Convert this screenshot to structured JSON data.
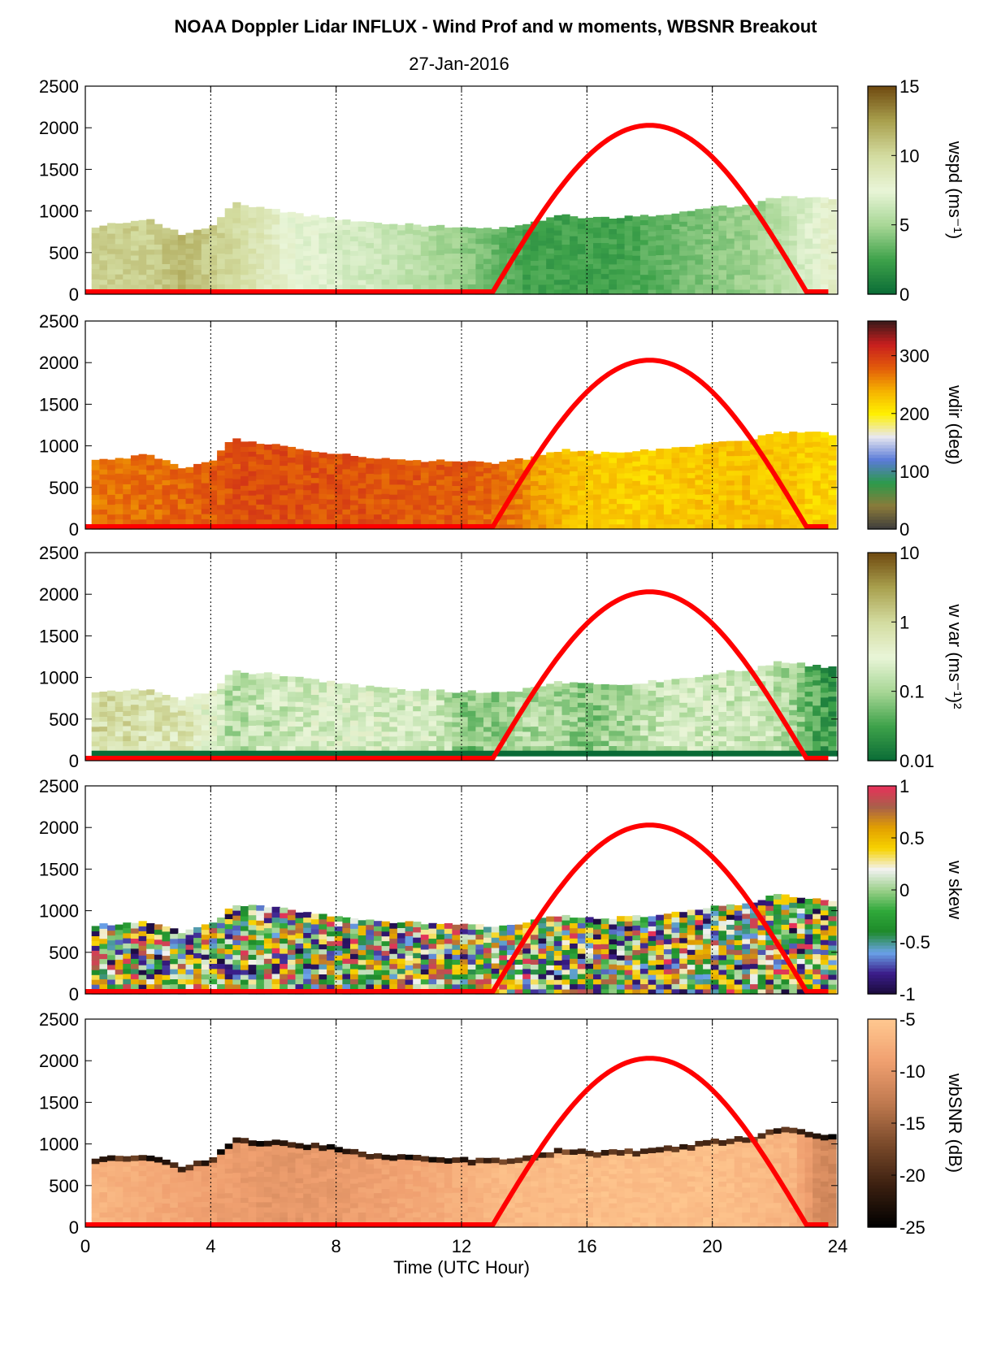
{
  "figure": {
    "title": "NOAA Doppler Lidar INFLUX - Wind Prof and w moments, WBSNR Breakout",
    "subtitle": "27-Jan-2016",
    "xlabel": "Time (UTC Hour)"
  },
  "colors": {
    "sun_curve": "#ff0000",
    "ground_line": "#ff0000"
  },
  "chart_data": [
    {
      "type": "heatmap",
      "variable": "wspd",
      "colorbar_label": "wspd (ms⁻¹)",
      "colorbar_ticks": [
        "0",
        "5",
        "10",
        "15"
      ],
      "clim": [
        0,
        15
      ],
      "colormap": [
        "#0a6b36",
        "#3ea24a",
        "#a8d796",
        "#e9f5d8",
        "#d3dca0",
        "#a9a04e",
        "#6f4a10"
      ],
      "x_ticks": [
        0,
        4,
        8,
        12,
        16,
        20,
        24
      ],
      "xlim": [
        0,
        24
      ],
      "y_ticks": [
        0,
        500,
        1000,
        1500,
        2000,
        2500
      ],
      "ylim": [
        0,
        2500
      ],
      "sun_curve": {
        "start_hour": 13,
        "peak_hour": 18,
        "end_hour": 23,
        "peak_value": 2000
      },
      "top_height_m": [
        [
          0.2,
          820
        ],
        [
          1.0,
          850
        ],
        [
          2.0,
          900
        ],
        [
          3.0,
          710
        ],
        [
          4.0,
          850
        ],
        [
          4.6,
          1120
        ],
        [
          5.0,
          1050
        ],
        [
          6.0,
          1010
        ],
        [
          7.0,
          950
        ],
        [
          8.0,
          900
        ],
        [
          9.0,
          860
        ],
        [
          10.0,
          840
        ],
        [
          11.0,
          820
        ],
        [
          12.0,
          800
        ],
        [
          13.0,
          790
        ],
        [
          14.0,
          850
        ],
        [
          15.0,
          950
        ],
        [
          16.0,
          920
        ],
        [
          17.0,
          920
        ],
        [
          18.0,
          950
        ],
        [
          19.0,
          980
        ],
        [
          20.0,
          1060
        ],
        [
          21.0,
          1060
        ],
        [
          22.0,
          1170
        ],
        [
          23.0,
          1170
        ],
        [
          23.8,
          1130
        ]
      ],
      "level_by_hour": [
        [
          0.2,
          10.5
        ],
        [
          2.0,
          10.5
        ],
        [
          3.0,
          11.5
        ],
        [
          5.5,
          9.0
        ],
        [
          6.5,
          7.5
        ],
        [
          10.0,
          6.0
        ],
        [
          12.0,
          4.5
        ],
        [
          14.0,
          2.5
        ],
        [
          17.0,
          2.5
        ],
        [
          19.5,
          4.0
        ],
        [
          21.5,
          5.0
        ],
        [
          23.0,
          7.0
        ],
        [
          23.8,
          8.5
        ]
      ]
    },
    {
      "type": "heatmap",
      "variable": "wdir",
      "colorbar_label": "wdir (deg)",
      "colorbar_ticks": [
        "0",
        "100",
        "200",
        "300"
      ],
      "clim": [
        0,
        360
      ],
      "colormap": [
        "#3c3c3c",
        "#8b7a3a",
        "#2c9a4a",
        "#5a7ad8",
        "#e8e8f0",
        "#fff000",
        "#f5b000",
        "#e25a0a",
        "#c81e1e",
        "#3a1a1a"
      ],
      "x_ticks": [
        0,
        4,
        8,
        12,
        16,
        20,
        24
      ],
      "xlim": [
        0,
        24
      ],
      "y_ticks": [
        0,
        500,
        1000,
        1500,
        2000,
        2500
      ],
      "ylim": [
        0,
        2500
      ],
      "sun_curve": {
        "start_hour": 13,
        "peak_hour": 18,
        "end_hour": 23,
        "peak_value": 2000
      },
      "top_height_m": [
        [
          0.2,
          820
        ],
        [
          1.0,
          850
        ],
        [
          2.0,
          900
        ],
        [
          3.0,
          710
        ],
        [
          4.0,
          850
        ],
        [
          4.6,
          1120
        ],
        [
          5.0,
          1050
        ],
        [
          6.0,
          1010
        ],
        [
          7.0,
          950
        ],
        [
          8.0,
          900
        ],
        [
          9.0,
          860
        ],
        [
          10.0,
          840
        ],
        [
          11.0,
          820
        ],
        [
          12.0,
          800
        ],
        [
          13.0,
          790
        ],
        [
          14.0,
          850
        ],
        [
          15.0,
          950
        ],
        [
          16.0,
          920
        ],
        [
          17.0,
          920
        ],
        [
          18.0,
          950
        ],
        [
          19.0,
          980
        ],
        [
          20.0,
          1060
        ],
        [
          21.0,
          1060
        ],
        [
          22.0,
          1170
        ],
        [
          23.0,
          1170
        ],
        [
          23.8,
          1130
        ]
      ],
      "level_by_hour": [
        [
          0.2,
          265
        ],
        [
          3.0,
          275
        ],
        [
          5.0,
          290
        ],
        [
          9.0,
          285
        ],
        [
          12.0,
          280
        ],
        [
          13.5,
          265
        ],
        [
          15.0,
          235
        ],
        [
          17.0,
          220
        ],
        [
          19.0,
          225
        ],
        [
          21.0,
          230
        ],
        [
          22.5,
          225
        ],
        [
          23.8,
          215
        ]
      ]
    },
    {
      "type": "heatmap",
      "variable": "w var",
      "colorbar_label": "w var (ms⁻¹)²",
      "colorbar_ticks": [
        "0.01",
        "0.1",
        "1",
        "10"
      ],
      "clim": [
        0.01,
        10
      ],
      "log_scale": true,
      "colormap": [
        "#0a6b36",
        "#3ea24a",
        "#a8d796",
        "#e9f5d8",
        "#d3dca0",
        "#a9a04e",
        "#6f4a10"
      ],
      "x_ticks": [
        0,
        4,
        8,
        12,
        16,
        20,
        24
      ],
      "xlim": [
        0,
        24
      ],
      "y_ticks": [
        0,
        500,
        1000,
        1500,
        2000,
        2500
      ],
      "ylim": [
        0,
        2500
      ],
      "sun_curve": {
        "start_hour": 13,
        "peak_hour": 18,
        "end_hour": 23,
        "peak_value": 2000
      },
      "bottom_band": {
        "height_m": 120,
        "color": "#0a6b36"
      },
      "top_height_m": [
        [
          0.2,
          820
        ],
        [
          1.0,
          850
        ],
        [
          2.0,
          870
        ],
        [
          3.0,
          730
        ],
        [
          4.0,
          860
        ],
        [
          4.6,
          1070
        ],
        [
          6.0,
          1040
        ],
        [
          7.0,
          980
        ],
        [
          8.0,
          930
        ],
        [
          9.0,
          880
        ],
        [
          10.0,
          860
        ],
        [
          11.0,
          840
        ],
        [
          12.0,
          830
        ],
        [
          13.0,
          820
        ],
        [
          14.0,
          860
        ],
        [
          15.0,
          940
        ],
        [
          16.0,
          920
        ],
        [
          17.0,
          920
        ],
        [
          18.0,
          950
        ],
        [
          19.0,
          980
        ],
        [
          20.0,
          1060
        ],
        [
          21.0,
          1080
        ],
        [
          22.0,
          1200
        ],
        [
          23.0,
          1150
        ],
        [
          24.0,
          1110
        ]
      ],
      "level_by_hour": [
        [
          0.2,
          0.9
        ],
        [
          3.0,
          0.6
        ],
        [
          4.5,
          0.12
        ],
        [
          8.0,
          0.25
        ],
        [
          11.0,
          0.2
        ],
        [
          12.0,
          0.06
        ],
        [
          14.0,
          0.12
        ],
        [
          16.0,
          0.07
        ],
        [
          19.0,
          0.2
        ],
        [
          21.5,
          0.18
        ],
        [
          23.0,
          0.04
        ],
        [
          24.0,
          0.02
        ]
      ]
    },
    {
      "type": "heatmap",
      "variable": "w skew",
      "colorbar_label": "w skew",
      "colorbar_ticks": [
        "-1",
        "-0.5",
        "0",
        "0.5",
        "1"
      ],
      "clim": [
        -1,
        1
      ],
      "colormap": [
        "#1a0b3a",
        "#3b1d8a",
        "#6aa3e8",
        "#1e8a2a",
        "#2fa83a",
        "#9bd08a",
        "#f2f2f2",
        "#f7d200",
        "#e2a000",
        "#a8604a",
        "#e8305a"
      ],
      "x_ticks": [
        0,
        4,
        8,
        12,
        16,
        20,
        24
      ],
      "xlim": [
        0,
        24
      ],
      "y_ticks": [
        0,
        500,
        1000,
        1500,
        2000,
        2500
      ],
      "ylim": [
        0,
        2500
      ],
      "sun_curve": {
        "start_hour": 13,
        "peak_hour": 18,
        "end_hour": 23,
        "peak_value": 2000
      },
      "top_height_m": [
        [
          0.2,
          820
        ],
        [
          1.0,
          850
        ],
        [
          2.0,
          870
        ],
        [
          3.0,
          730
        ],
        [
          4.0,
          860
        ],
        [
          4.6,
          1070
        ],
        [
          6.0,
          1040
        ],
        [
          7.0,
          980
        ],
        [
          8.0,
          930
        ],
        [
          9.0,
          880
        ],
        [
          10.0,
          860
        ],
        [
          11.0,
          840
        ],
        [
          12.0,
          830
        ],
        [
          13.0,
          820
        ],
        [
          14.0,
          860
        ],
        [
          15.0,
          940
        ],
        [
          16.0,
          920
        ],
        [
          17.0,
          920
        ],
        [
          18.0,
          950
        ],
        [
          19.0,
          980
        ],
        [
          20.0,
          1060
        ],
        [
          21.0,
          1080
        ],
        [
          22.0,
          1200
        ],
        [
          23.0,
          1150
        ],
        [
          24.0,
          1110
        ]
      ],
      "level_by_hour": [
        [
          0.2,
          0.0
        ],
        [
          12.0,
          0.0
        ],
        [
          24.0,
          0.0
        ]
      ]
    },
    {
      "type": "heatmap",
      "variable": "wbSNR",
      "colorbar_label": "wbSNR (dB)",
      "colorbar_ticks": [
        "-25",
        "-20",
        "-15",
        "-10",
        "-5"
      ],
      "clim": [
        -25,
        -5
      ],
      "colormap": [
        "#000000",
        "#3a1f10",
        "#7a4a2a",
        "#c07a50",
        "#f0a070",
        "#ffc890"
      ],
      "x_ticks": [
        0,
        4,
        8,
        12,
        16,
        20,
        24
      ],
      "xlim": [
        0,
        24
      ],
      "y_ticks": [
        0,
        500,
        1000,
        1500,
        2000,
        2500
      ],
      "ylim": [
        0,
        2500
      ],
      "sun_curve": {
        "start_hour": 13,
        "peak_hour": 18,
        "end_hour": 23,
        "peak_value": 2000
      },
      "top_height_m": [
        [
          0.2,
          820
        ],
        [
          1.0,
          870
        ],
        [
          2.0,
          880
        ],
        [
          3.0,
          720
        ],
        [
          4.0,
          860
        ],
        [
          4.6,
          1070
        ],
        [
          6.0,
          1040
        ],
        [
          7.0,
          1000
        ],
        [
          8.0,
          980
        ],
        [
          9.0,
          880
        ],
        [
          10.0,
          860
        ],
        [
          11.0,
          840
        ],
        [
          12.0,
          830
        ],
        [
          13.0,
          820
        ],
        [
          14.0,
          860
        ],
        [
          15.0,
          940
        ],
        [
          16.0,
          920
        ],
        [
          17.0,
          920
        ],
        [
          18.0,
          950
        ],
        [
          19.0,
          980
        ],
        [
          20.0,
          1060
        ],
        [
          21.0,
          1080
        ],
        [
          22.0,
          1200
        ],
        [
          23.0,
          1150
        ],
        [
          24.0,
          1100
        ]
      ],
      "level_by_hour": [
        [
          0.2,
          -7.0
        ],
        [
          4.0,
          -9.0
        ],
        [
          6.0,
          -10.0
        ],
        [
          8.0,
          -9.5
        ],
        [
          12.0,
          -7.5
        ],
        [
          13.0,
          -6.5
        ],
        [
          16.0,
          -6.0
        ],
        [
          20.0,
          -6.0
        ],
        [
          22.5,
          -7.0
        ],
        [
          23.2,
          -11.0
        ],
        [
          24.0,
          -12.0
        ]
      ]
    }
  ]
}
